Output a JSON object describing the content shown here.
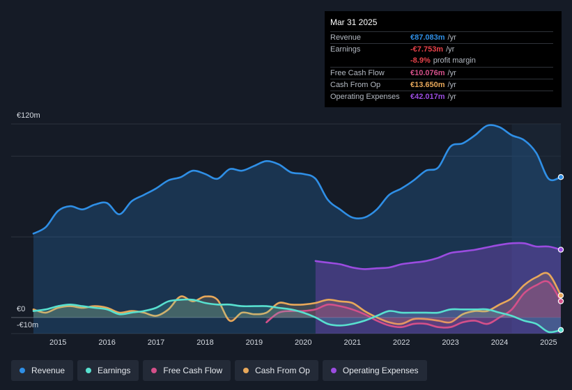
{
  "colors": {
    "revenue": "#2f8fe6",
    "earnings": "#58e0cf",
    "free_cash_flow": "#d4508a",
    "cash_from_op": "#e8a85a",
    "operating_expenses": "#9b4ce0"
  },
  "tooltip": {
    "date": "Mar 31 2025",
    "rows": [
      {
        "label": "Revenue",
        "value": "€87.083m",
        "suffix": "/yr",
        "color": "#2f8fe6"
      },
      {
        "label": "Earnings",
        "value": "-€7.753m",
        "suffix": "/yr",
        "color": "#e8424a"
      },
      {
        "label": "",
        "value": "-8.9%",
        "suffix": "profit margin",
        "color": "#e8424a"
      },
      {
        "label": "Free Cash Flow",
        "value": "€10.076m",
        "suffix": "/yr",
        "color": "#d4508a"
      },
      {
        "label": "Cash From Op",
        "value": "€13.650m",
        "suffix": "/yr",
        "color": "#e8a85a"
      },
      {
        "label": "Operating Expenses",
        "value": "€42.017m",
        "suffix": "/yr",
        "color": "#9b4ce0"
      }
    ]
  },
  "legend": [
    {
      "label": "Revenue",
      "color": "#2f8fe6"
    },
    {
      "label": "Earnings",
      "color": "#58e0cf"
    },
    {
      "label": "Free Cash Flow",
      "color": "#d4508a"
    },
    {
      "label": "Cash From Op",
      "color": "#e8a85a"
    },
    {
      "label": "Operating Expenses",
      "color": "#9b4ce0"
    }
  ],
  "chart_data": {
    "type": "area",
    "x_range": [
      2014.5,
      2025.25
    ],
    "ylim": [
      -10,
      120
    ],
    "y_tick_labels": [
      {
        "label": "€120m",
        "value": 120
      },
      {
        "label": "€0",
        "value": 0
      },
      {
        "label": "-€10m",
        "value": -10
      }
    ],
    "x_tick_labels": [
      "2015",
      "2016",
      "2017",
      "2018",
      "2019",
      "2020",
      "2021",
      "2022",
      "2023",
      "2024",
      "2025"
    ],
    "x_tick_values": [
      2015,
      2016,
      2017,
      2018,
      2019,
      2020,
      2021,
      2022,
      2023,
      2024,
      2025
    ],
    "gridlines": [
      120,
      100,
      50,
      0
    ],
    "forecast_start": 2024.25,
    "series": [
      {
        "name": "Revenue",
        "key": "revenue",
        "fill": true,
        "points": [
          [
            2014.5,
            52
          ],
          [
            2014.75,
            56
          ],
          [
            2015,
            66
          ],
          [
            2015.25,
            69
          ],
          [
            2015.5,
            67
          ],
          [
            2015.75,
            70
          ],
          [
            2016,
            71
          ],
          [
            2016.25,
            64
          ],
          [
            2016.5,
            72
          ],
          [
            2016.75,
            76
          ],
          [
            2017,
            80
          ],
          [
            2017.25,
            85
          ],
          [
            2017.5,
            87
          ],
          [
            2017.75,
            91
          ],
          [
            2018,
            89
          ],
          [
            2018.25,
            86
          ],
          [
            2018.5,
            92
          ],
          [
            2018.75,
            91
          ],
          [
            2019,
            94
          ],
          [
            2019.25,
            97
          ],
          [
            2019.5,
            95
          ],
          [
            2019.75,
            90
          ],
          [
            2020,
            89
          ],
          [
            2020.25,
            86
          ],
          [
            2020.5,
            73
          ],
          [
            2020.75,
            67
          ],
          [
            2021,
            62
          ],
          [
            2021.25,
            62
          ],
          [
            2021.5,
            67
          ],
          [
            2021.75,
            76
          ],
          [
            2022,
            80
          ],
          [
            2022.25,
            85
          ],
          [
            2022.5,
            91
          ],
          [
            2022.75,
            93
          ],
          [
            2023,
            106
          ],
          [
            2023.25,
            108
          ],
          [
            2023.5,
            113
          ],
          [
            2023.75,
            119
          ],
          [
            2024,
            118
          ],
          [
            2024.25,
            113
          ],
          [
            2024.5,
            110
          ],
          [
            2024.75,
            102
          ],
          [
            2025,
            86
          ],
          [
            2025.25,
            87.083
          ]
        ]
      },
      {
        "name": "Operating Expenses",
        "key": "operating_expenses",
        "fill": true,
        "points": [
          [
            2020.25,
            35
          ],
          [
            2020.5,
            34
          ],
          [
            2020.75,
            33
          ],
          [
            2021,
            31
          ],
          [
            2021.25,
            30
          ],
          [
            2021.5,
            30.5
          ],
          [
            2021.75,
            31
          ],
          [
            2022,
            33
          ],
          [
            2022.25,
            34
          ],
          [
            2022.5,
            35
          ],
          [
            2022.75,
            37
          ],
          [
            2023,
            40
          ],
          [
            2023.25,
            41
          ],
          [
            2023.5,
            42
          ],
          [
            2023.75,
            43.5
          ],
          [
            2024,
            45
          ],
          [
            2024.25,
            46
          ],
          [
            2024.5,
            46
          ],
          [
            2024.75,
            44
          ],
          [
            2025,
            44
          ],
          [
            2025.25,
            42.017
          ]
        ]
      },
      {
        "name": "Cash From Op",
        "key": "cash_from_op",
        "fill": true,
        "points": [
          [
            2014.5,
            5
          ],
          [
            2014.75,
            3
          ],
          [
            2015,
            6
          ],
          [
            2015.25,
            7
          ],
          [
            2015.5,
            6
          ],
          [
            2015.75,
            7
          ],
          [
            2016,
            6
          ],
          [
            2016.25,
            3
          ],
          [
            2016.5,
            4
          ],
          [
            2016.75,
            3
          ],
          [
            2017,
            1
          ],
          [
            2017.25,
            5
          ],
          [
            2017.5,
            13
          ],
          [
            2017.75,
            10
          ],
          [
            2018,
            13
          ],
          [
            2018.25,
            11
          ],
          [
            2018.5,
            -2
          ],
          [
            2018.75,
            3
          ],
          [
            2019,
            2
          ],
          [
            2019.25,
            3
          ],
          [
            2019.5,
            9
          ],
          [
            2019.75,
            8
          ],
          [
            2020,
            8
          ],
          [
            2020.25,
            9
          ],
          [
            2020.5,
            11
          ],
          [
            2020.75,
            10
          ],
          [
            2021,
            9
          ],
          [
            2021.25,
            4
          ],
          [
            2021.5,
            0
          ],
          [
            2021.75,
            -3
          ],
          [
            2022,
            -4
          ],
          [
            2022.25,
            -1
          ],
          [
            2022.5,
            -1
          ],
          [
            2022.75,
            -2
          ],
          [
            2023,
            -3
          ],
          [
            2023.25,
            2
          ],
          [
            2023.5,
            4
          ],
          [
            2023.75,
            4
          ],
          [
            2024,
            8
          ],
          [
            2024.25,
            12
          ],
          [
            2024.5,
            20
          ],
          [
            2024.75,
            25
          ],
          [
            2025,
            27
          ],
          [
            2025.25,
            13.65
          ]
        ]
      },
      {
        "name": "Free Cash Flow",
        "key": "free_cash_flow",
        "fill": true,
        "points": [
          [
            2019.25,
            -3
          ],
          [
            2019.5,
            3
          ],
          [
            2019.75,
            4
          ],
          [
            2020,
            4
          ],
          [
            2020.25,
            5
          ],
          [
            2020.5,
            8
          ],
          [
            2020.75,
            7
          ],
          [
            2021,
            5
          ],
          [
            2021.25,
            2
          ],
          [
            2021.5,
            -2
          ],
          [
            2021.75,
            -5
          ],
          [
            2022,
            -6
          ],
          [
            2022.25,
            -4
          ],
          [
            2022.5,
            -4
          ],
          [
            2022.75,
            -6
          ],
          [
            2023,
            -6
          ],
          [
            2023.25,
            -3
          ],
          [
            2023.5,
            -2
          ],
          [
            2023.75,
            -4
          ],
          [
            2024,
            0
          ],
          [
            2024.25,
            5
          ],
          [
            2024.5,
            15
          ],
          [
            2024.75,
            20
          ],
          [
            2025,
            22
          ],
          [
            2025.25,
            10.076
          ]
        ]
      },
      {
        "name": "Earnings",
        "key": "earnings",
        "fill": true,
        "points": [
          [
            2014.5,
            4
          ],
          [
            2014.75,
            5
          ],
          [
            2015,
            7
          ],
          [
            2015.25,
            8
          ],
          [
            2015.5,
            7
          ],
          [
            2015.75,
            6
          ],
          [
            2016,
            5
          ],
          [
            2016.25,
            2
          ],
          [
            2016.5,
            3
          ],
          [
            2016.75,
            4
          ],
          [
            2017,
            6
          ],
          [
            2017.25,
            10
          ],
          [
            2017.5,
            11
          ],
          [
            2017.75,
            11
          ],
          [
            2018,
            9
          ],
          [
            2018.25,
            8
          ],
          [
            2018.5,
            8
          ],
          [
            2018.75,
            7
          ],
          [
            2019,
            7
          ],
          [
            2019.25,
            7
          ],
          [
            2019.5,
            6
          ],
          [
            2019.75,
            5
          ],
          [
            2020,
            3
          ],
          [
            2020.25,
            0
          ],
          [
            2020.5,
            -4
          ],
          [
            2020.75,
            -5
          ],
          [
            2021,
            -4
          ],
          [
            2021.25,
            -2
          ],
          [
            2021.5,
            1
          ],
          [
            2021.75,
            4
          ],
          [
            2022,
            3
          ],
          [
            2022.25,
            3
          ],
          [
            2022.5,
            3
          ],
          [
            2022.75,
            3
          ],
          [
            2023,
            5
          ],
          [
            2023.25,
            5
          ],
          [
            2023.5,
            5
          ],
          [
            2023.75,
            5
          ],
          [
            2024,
            3
          ],
          [
            2024.25,
            1
          ],
          [
            2024.5,
            -2
          ],
          [
            2024.75,
            -4
          ],
          [
            2025,
            -9
          ],
          [
            2025.25,
            -7.753
          ]
        ]
      }
    ]
  }
}
